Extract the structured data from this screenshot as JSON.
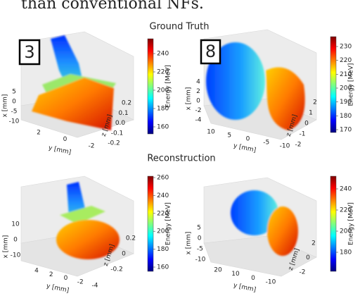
{
  "caption_fragment": "than conventional NFs.",
  "row_titles": [
    "Ground Truth",
    "Reconstruction"
  ],
  "panels": [
    {
      "label": "3",
      "x_label": "x [mm]",
      "y_label": "y [mm]",
      "z_label": "z [mm]",
      "colorbar_label": "Energy [MeV]",
      "x_ticks": [
        "5",
        "0",
        "-5",
        "-10"
      ],
      "y_ticks": [
        "2",
        "0",
        "-2"
      ],
      "z_ticks": [
        "0.2",
        "0.1",
        "0.0",
        "-0.1",
        "-0.2"
      ],
      "colorbar_ticks": [
        "240",
        "220",
        "200",
        "180",
        "160"
      ]
    },
    {
      "label": "8",
      "x_label": "x [mm]",
      "y_label": "y [mm]",
      "z_label": "z [mm]",
      "colorbar_label": "Energy [MeV]",
      "x_ticks": [
        "4",
        "2",
        "0",
        "-2",
        "-4"
      ],
      "y_ticks": [
        "10",
        "5",
        "0",
        "-5",
        "-10"
      ],
      "z_ticks": [
        "2",
        "1",
        "0",
        "-1",
        "-2"
      ],
      "colorbar_ticks": [
        "230",
        "220",
        "210",
        "200",
        "190",
        "180",
        "170"
      ]
    },
    {
      "x_label": "x [mm]",
      "y_label": "y [mm]",
      "z_label": "z [mm]",
      "colorbar_label": "Energy [MeV]",
      "x_ticks": [
        "10",
        "0",
        "-10"
      ],
      "y_ticks": [
        "4",
        "2",
        "0",
        "-2",
        "-4"
      ],
      "z_ticks": [
        "0.2",
        "0",
        "-0.2"
      ],
      "colorbar_ticks": [
        "260",
        "240",
        "220",
        "200",
        "180",
        "160"
      ]
    },
    {
      "x_label": "x [mm]",
      "y_label": "y [mm]",
      "z_label": "z [mm]",
      "colorbar_label": "Energy [MeV]",
      "x_ticks": [
        "5",
        "0",
        "-5",
        "-10"
      ],
      "y_ticks": [
        "20",
        "10",
        "0",
        "-10"
      ],
      "z_ticks": [
        "2",
        "0",
        "-2"
      ],
      "colorbar_ticks": [
        "240",
        "220",
        "200",
        "180"
      ]
    }
  ]
}
